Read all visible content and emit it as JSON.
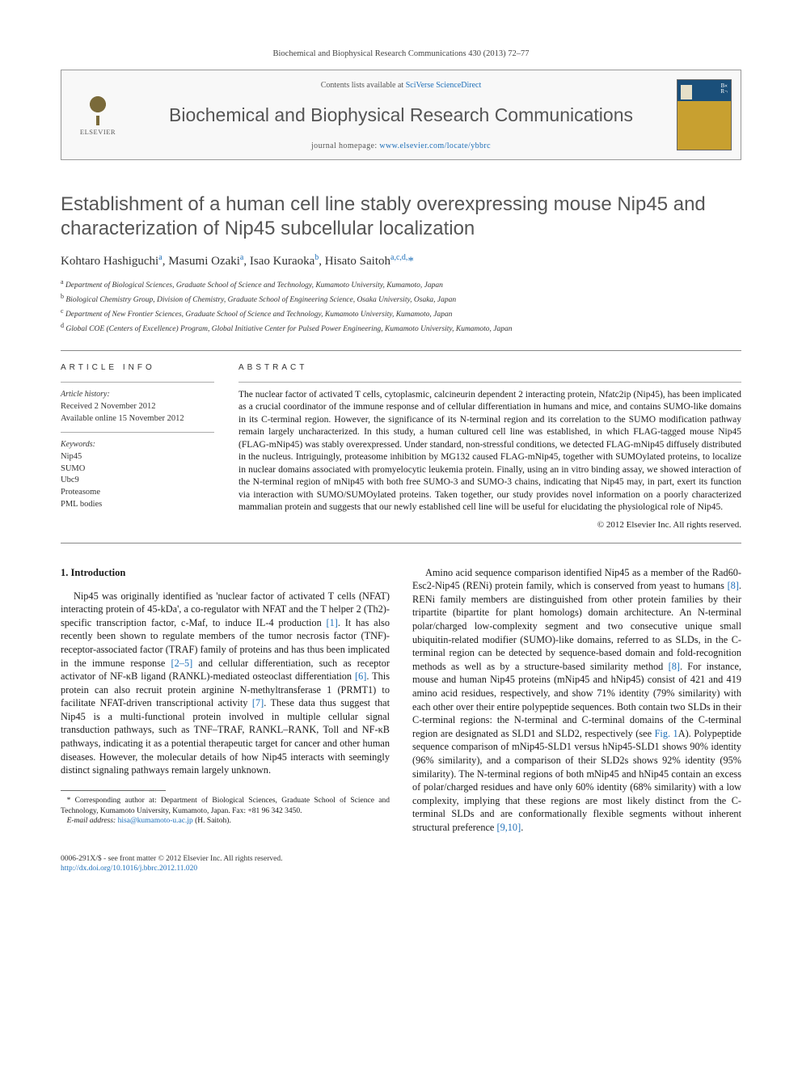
{
  "journal_ref": "Biochemical and Biophysical Research Communications 430 (2013) 72–77",
  "header": {
    "elsevier_label": "ELSEVIER",
    "contents_prefix": "Contents lists available at ",
    "contents_link": "SciVerse ScienceDirect",
    "journal_title": "Biochemical and Biophysical Research Communications",
    "homepage_prefix": "journal homepage: ",
    "homepage_link": "www.elsevier.com/locate/ybbrc"
  },
  "title": "Establishment of a human cell line stably overexpressing mouse Nip45 and characterization of Nip45 subcellular localization",
  "authors_html": "Kohtaro Hashiguchi<sup>a</sup>, Masumi Ozaki<sup>a</sup>, Isao Kuraoka<sup>b</sup>, Hisato Saitoh<sup>a,c,d,</sup><span class='star'>*</span>",
  "affiliations": {
    "a": "Department of Biological Sciences, Graduate School of Science and Technology, Kumamoto University, Kumamoto, Japan",
    "b": "Biological Chemistry Group, Division of Chemistry, Graduate School of Engineering Science, Osaka University, Osaka, Japan",
    "c": "Department of New Frontier Sciences, Graduate School of Science and Technology, Kumamoto University, Kumamoto, Japan",
    "d": "Global COE (Centers of Excellence) Program, Global Initiative Center for Pulsed Power Engineering, Kumamoto University, Kumamoto, Japan"
  },
  "article_info": {
    "heading": "ARTICLE INFO",
    "history_label": "Article history:",
    "received": "Received 2 November 2012",
    "online": "Available online 15 November 2012",
    "keywords_label": "Keywords:",
    "keywords": [
      "Nip45",
      "SUMO",
      "Ubc9",
      "Proteasome",
      "PML bodies"
    ]
  },
  "abstract": {
    "heading": "ABSTRACT",
    "text": "The nuclear factor of activated T cells, cytoplasmic, calcineurin dependent 2 interacting protein, Nfatc2ip (Nip45), has been implicated as a crucial coordinator of the immune response and of cellular differentiation in humans and mice, and contains SUMO-like domains in its C-terminal region. However, the significance of its N-terminal region and its correlation to the SUMO modification pathway remain largely uncharacterized. In this study, a human cultured cell line was established, in which FLAG-tagged mouse Nip45 (FLAG-mNip45) was stably overexpressed. Under standard, non-stressful conditions, we detected FLAG-mNip45 diffusely distributed in the nucleus. Intriguingly, proteasome inhibition by MG132 caused FLAG-mNip45, together with SUMOylated proteins, to localize in nuclear domains associated with promyelocytic leukemia protein. Finally, using an in vitro binding assay, we showed interaction of the N-terminal region of mNip45 with both free SUMO-3 and SUMO-3 chains, indicating that Nip45 may, in part, exert its function via interaction with SUMO/SUMOylated proteins. Taken together, our study provides novel information on a poorly characterized mammalian protein and suggests that our newly established cell line will be useful for elucidating the physiological role of Nip45.",
    "copyright": "© 2012 Elsevier Inc. All rights reserved."
  },
  "intro": {
    "heading": "1. Introduction",
    "p1_pre": "Nip45 was originally identified as 'nuclear factor of activated T cells (NFAT) interacting protein of 45-kDa', a co-regulator with NFAT and the T helper 2 (Th2)-specific transcription factor, c-Maf, to induce IL-4 production ",
    "r1": "[1]",
    "p1_mid1": ". It has also recently been shown to regulate members of the tumor necrosis factor (TNF)-receptor-associated factor (TRAF) family of proteins and has thus been implicated in the immune response ",
    "r2_5": "[2–5]",
    "p1_mid2": " and cellular differentiation, such as receptor activator of NF-κB ligand (RANKL)-mediated osteoclast differentiation ",
    "r6": "[6]",
    "p1_mid3": ". This protein can also recruit protein arginine N-methyltransferase 1 (PRMT1) to facilitate NFAT-driven transcriptional activity ",
    "r7": "[7]",
    "p1_post": ". These data thus suggest that Nip45 is a multi-functional protein involved in multiple cellular signal transduction pathways, such as TNF–TRAF, RANKL–RANK, Toll and NF-κB pathways, indicating it as a potential therapeutic target for cancer and other human diseases. However, the molecular details of how Nip45 interacts with seemingly distinct signaling pathways remain largely unknown.",
    "p2_pre": "Amino acid sequence comparison identified Nip45 as a member of the Rad60-Esc2-Nip45 (RENi) protein family, which is conserved from yeast to humans ",
    "r8a": "[8]",
    "p2_mid1": ". RENi family members are distinguished from other protein families by their tripartite (bipartite for plant homologs) domain architecture. An N-terminal polar/charged low-complexity segment and two consecutive unique small ubiquitin-related modifier (SUMO)-like domains, referred to as SLDs, in the C-terminal region can be detected by sequence-based domain and fold-recognition methods as well as by a structure-based similarity method ",
    "r8b": "[8]",
    "p2_mid2": ". For instance, mouse and human Nip45 proteins (mNip45 and hNip45) consist of 421 and 419 amino acid residues, respectively, and show 71% identity (79% similarity) with each other over their entire polypeptide sequences. Both contain two SLDs in their C-terminal regions: the N-terminal and C-terminal domains of the C-terminal region are designated as SLD1 and SLD2, respectively (see ",
    "fig1a": "Fig. 1",
    "p2_mid3": "A). Polypeptide sequence comparison of mNip45-SLD1 versus hNip45-SLD1 shows 90% identity (96% similarity), and a comparison of their SLD2s shows 92% identity (95% similarity). The N-terminal regions of both mNip45 and hNip45 contain an excess of polar/charged residues and have only 60% identity (68% similarity) with a low complexity, implying that these regions are most likely distinct from the C-terminal SLDs and are conformationally flexible segments without inherent structural preference ",
    "r9_10": "[9,10]",
    "p2_post": "."
  },
  "footnotes": {
    "corr_label": "* Corresponding author at: Department of Biological Sciences, Graduate School of Science and Technology, Kumamoto University, Kumamoto, Japan. Fax: +81 96 342 3450.",
    "email_label": "E-mail address:",
    "email": "hisa@kumamoto-u.ac.jp",
    "email_name": "(H. Saitoh)."
  },
  "bottom": {
    "left1": "0006-291X/$ - see front matter © 2012 Elsevier Inc. All rights reserved.",
    "doi": "http://dx.doi.org/10.1016/j.bbrc.2012.11.020"
  },
  "colors": {
    "link": "#1e6fb8",
    "text": "#1a1a1a",
    "muted": "#555555",
    "rule": "#888888"
  }
}
